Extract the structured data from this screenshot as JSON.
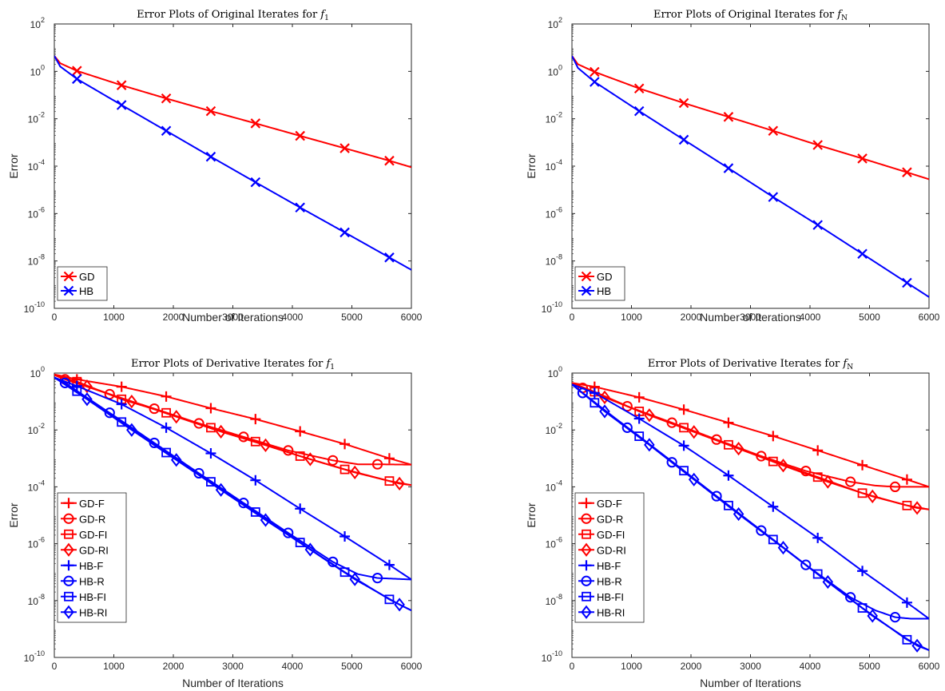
{
  "chart_data": [
    {
      "type": "line",
      "title": "Error Plots of Original Iterates for ",
      "title_math": "f",
      "title_sub": "1",
      "xlabel": "Number of Iterations",
      "ylabel": "Error",
      "xlim": [
        0,
        6000
      ],
      "ylim_log10": [
        -10,
        2
      ],
      "yscale": "log",
      "x_ticks": [
        "0",
        "1000",
        "2000",
        "3000",
        "4000",
        "5000",
        "6000"
      ],
      "y_ticks": [
        "10",
        "10",
        "10",
        "10",
        "10",
        "10",
        "10"
      ],
      "y_tick_exponents": [
        "-10",
        "-8",
        "-6",
        "-4",
        "-2",
        "0",
        "2"
      ],
      "legend_position": "bottom-left",
      "series": [
        {
          "name": "GD",
          "color": "#ff0000",
          "marker": "x",
          "x": [
            0,
            100,
            380,
            1130,
            1880,
            2630,
            3380,
            4130,
            4880,
            5630,
            6000
          ],
          "y": [
            4.5,
            2.2,
            1.05,
            0.26,
            0.072,
            0.021,
            0.0064,
            0.0019,
            0.00057,
            0.00017,
            9e-05
          ],
          "markers_at": [
            380,
            1130,
            1880,
            2630,
            3380,
            4130,
            4880,
            5630
          ]
        },
        {
          "name": "HB",
          "color": "#0000ff",
          "marker": "x",
          "x": [
            0,
            100,
            380,
            1130,
            1880,
            2630,
            3380,
            4130,
            4880,
            5630,
            6000
          ],
          "y": [
            4.5,
            1.6,
            0.48,
            0.038,
            0.0031,
            0.00025,
            2.1e-05,
            1.8e-06,
            1.6e-07,
            1.4e-08,
            4.2e-09
          ],
          "markers_at": [
            380,
            1130,
            1880,
            2630,
            3380,
            4130,
            4880,
            5630
          ]
        }
      ]
    },
    {
      "type": "line",
      "title": "Error Plots of Original Iterates for ",
      "title_math": "f",
      "title_sub": "N",
      "xlabel": "Number of Iterations",
      "ylabel": "Error",
      "xlim": [
        0,
        6000
      ],
      "ylim_log10": [
        -10,
        2
      ],
      "yscale": "log",
      "x_ticks": [
        "0",
        "1000",
        "2000",
        "3000",
        "4000",
        "5000",
        "6000"
      ],
      "y_ticks": [
        "10",
        "10",
        "10",
        "10",
        "10",
        "10",
        "10"
      ],
      "y_tick_exponents": [
        "-10",
        "-8",
        "-6",
        "-4",
        "-2",
        "0",
        "2"
      ],
      "legend_position": "bottom-left",
      "series": [
        {
          "name": "GD",
          "color": "#ff0000",
          "marker": "x",
          "x": [
            0,
            100,
            380,
            1130,
            1880,
            2630,
            3380,
            4130,
            4880,
            5630,
            6000
          ],
          "y": [
            4.5,
            2.0,
            0.95,
            0.19,
            0.046,
            0.012,
            0.0031,
            0.00078,
            0.00021,
            5.5e-05,
            2.8e-05
          ],
          "markers_at": [
            380,
            1130,
            1880,
            2630,
            3380,
            4130,
            4880,
            5630
          ]
        },
        {
          "name": "HB",
          "color": "#0000ff",
          "marker": "x",
          "x": [
            0,
            100,
            380,
            1130,
            1880,
            2630,
            3380,
            4130,
            4880,
            5630,
            6000
          ],
          "y": [
            4.5,
            1.4,
            0.36,
            0.021,
            0.0013,
            8.2e-05,
            5e-06,
            3.3e-07,
            2e-08,
            1.2e-09,
            3e-10
          ],
          "markers_at": [
            380,
            1130,
            1880,
            2630,
            3380,
            4130,
            4880,
            5630
          ]
        }
      ]
    },
    {
      "type": "line",
      "title": "Error Plots of Derivative Iterates for ",
      "title_math": "f",
      "title_sub": "1",
      "xlabel": "Number of Iterations",
      "ylabel": "Error",
      "xlim": [
        0,
        6000
      ],
      "ylim_log10": [
        -10,
        0
      ],
      "yscale": "log",
      "x_ticks": [
        "0",
        "1000",
        "2000",
        "3000",
        "4000",
        "5000",
        "6000"
      ],
      "y_ticks": [
        "10",
        "10",
        "10",
        "10",
        "10",
        "10"
      ],
      "y_tick_exponents": [
        "-10",
        "-8",
        "-6",
        "-4",
        "-2",
        "0"
      ],
      "legend_position": "bottom-left",
      "series": [
        {
          "name": "GD-F",
          "color": "#ff0000",
          "marker": "plus",
          "x": [
            0,
            380,
            1130,
            1880,
            2630,
            3380,
            4130,
            4880,
            5630,
            6000
          ],
          "y": [
            0.9,
            0.6,
            0.33,
            0.15,
            0.058,
            0.024,
            0.0089,
            0.0032,
            0.001,
            0.0006
          ],
          "markers_at": [
            380,
            1130,
            1880,
            2630,
            3380,
            4130,
            4880,
            5630
          ]
        },
        {
          "name": "GD-R",
          "color": "#ff0000",
          "marker": "circle",
          "x": [
            0,
            180,
            930,
            1680,
            2430,
            3180,
            3930,
            4680,
            5100,
            5430,
            6000
          ],
          "y": [
            0.85,
            0.6,
            0.18,
            0.056,
            0.017,
            0.0057,
            0.0019,
            0.00085,
            0.00062,
            0.00062,
            0.0006
          ],
          "markers_at": [
            180,
            930,
            1680,
            2430,
            3180,
            3930,
            4680,
            5430
          ]
        },
        {
          "name": "GD-FI",
          "color": "#ff0000",
          "marker": "square",
          "x": [
            0,
            380,
            1130,
            1880,
            2630,
            3380,
            4130,
            4880,
            5630,
            6000
          ],
          "y": [
            0.85,
            0.5,
            0.12,
            0.04,
            0.012,
            0.0039,
            0.0012,
            0.00041,
            0.00016,
            0.000115
          ],
          "markers_at": [
            380,
            1130,
            1880,
            2630,
            3380,
            4130,
            4880,
            5630
          ]
        },
        {
          "name": "GD-RI",
          "color": "#ff0000",
          "marker": "diamond",
          "x": [
            0,
            550,
            1300,
            2050,
            2800,
            3550,
            4300,
            5050,
            5800,
            6000
          ],
          "y": [
            0.85,
            0.34,
            0.1,
            0.029,
            0.0087,
            0.0029,
            0.00093,
            0.00032,
            0.00013,
            0.000115
          ],
          "markers_at": [
            550,
            1300,
            2050,
            2800,
            3550,
            4300,
            5050,
            5800
          ]
        },
        {
          "name": "HB-F",
          "color": "#0000ff",
          "marker": "plus",
          "x": [
            0,
            380,
            1130,
            1880,
            2630,
            3380,
            4130,
            4880,
            5630,
            6000
          ],
          "y": [
            0.7,
            0.35,
            0.08,
            0.012,
            0.0015,
            0.00017,
            1.7e-05,
            1.8e-06,
            1.8e-07,
            5.5e-08
          ],
          "markers_at": [
            380,
            1130,
            1880,
            2630,
            3380,
            4130,
            4880,
            5630
          ]
        },
        {
          "name": "HB-R",
          "color": "#0000ff",
          "marker": "circle",
          "x": [
            0,
            180,
            930,
            1680,
            2430,
            3180,
            3930,
            4680,
            5100,
            5430,
            6000
          ],
          "y": [
            0.7,
            0.45,
            0.04,
            0.0035,
            0.0003,
            2.7e-05,
            2.4e-06,
            2.3e-07,
            8.5e-08,
            6.2e-08,
            5.5e-08
          ],
          "markers_at": [
            180,
            930,
            1680,
            2430,
            3180,
            3930,
            4680,
            5430
          ]
        },
        {
          "name": "HB-FI",
          "color": "#0000ff",
          "marker": "square",
          "x": [
            0,
            380,
            1130,
            1880,
            2630,
            3380,
            4130,
            4880,
            5630,
            6000
          ],
          "y": [
            0.7,
            0.23,
            0.019,
            0.0016,
            0.00015,
            1.3e-05,
            1.1e-06,
            1e-07,
            1.1e-08,
            4.5e-09
          ],
          "markers_at": [
            380,
            1130,
            1880,
            2630,
            3380,
            4130,
            4880,
            5630
          ]
        },
        {
          "name": "HB-RI",
          "color": "#0000ff",
          "marker": "diamond",
          "x": [
            0,
            550,
            1300,
            2050,
            2800,
            3550,
            4300,
            5050,
            5800,
            6000
          ],
          "y": [
            0.7,
            0.12,
            0.01,
            0.00088,
            7.8e-05,
            6.8e-06,
            6.2e-07,
            5.6e-08,
            7.2e-09,
            4.5e-09
          ],
          "markers_at": [
            550,
            1300,
            2050,
            2800,
            3550,
            4300,
            5050,
            5800
          ]
        }
      ]
    },
    {
      "type": "line",
      "title": "Error Plots of Derivative Iterates for ",
      "title_math": "f",
      "title_sub": "N",
      "xlabel": "Number of Iterations",
      "ylabel": "Error",
      "xlim": [
        0,
        6000
      ],
      "ylim_log10": [
        -10,
        0
      ],
      "yscale": "log",
      "x_ticks": [
        "0",
        "1000",
        "2000",
        "3000",
        "4000",
        "5000",
        "6000"
      ],
      "y_ticks": [
        "10",
        "10",
        "10",
        "10",
        "10",
        "10"
      ],
      "y_tick_exponents": [
        "-10",
        "-8",
        "-6",
        "-4",
        "-2",
        "0"
      ],
      "legend_position": "bottom-left",
      "series": [
        {
          "name": "GD-F",
          "color": "#ff0000",
          "marker": "plus",
          "x": [
            0,
            380,
            1130,
            1880,
            2630,
            3380,
            4130,
            4880,
            5630,
            6000
          ],
          "y": [
            0.45,
            0.33,
            0.14,
            0.052,
            0.018,
            0.0061,
            0.0019,
            0.00058,
            0.00018,
            0.0001
          ],
          "markers_at": [
            380,
            1130,
            1880,
            2630,
            3380,
            4130,
            4880,
            5630
          ]
        },
        {
          "name": "GD-R",
          "color": "#ff0000",
          "marker": "circle",
          "x": [
            0,
            180,
            930,
            1680,
            2430,
            3180,
            3930,
            4680,
            5100,
            5430,
            6000
          ],
          "y": [
            0.45,
            0.3,
            0.068,
            0.018,
            0.0046,
            0.0012,
            0.00036,
            0.00015,
            0.00011,
            0.0001,
            0.0001
          ],
          "markers_at": [
            180,
            930,
            1680,
            2430,
            3180,
            3930,
            4680,
            5430
          ]
        },
        {
          "name": "GD-FI",
          "color": "#ff0000",
          "marker": "square",
          "x": [
            0,
            380,
            1130,
            1880,
            2630,
            3380,
            4130,
            4880,
            5630,
            6000
          ],
          "y": [
            0.45,
            0.22,
            0.045,
            0.012,
            0.003,
            0.00078,
            0.00022,
            6e-05,
            2.2e-05,
            1.6e-05
          ],
          "markers_at": [
            380,
            1130,
            1880,
            2630,
            3380,
            4130,
            4880,
            5630
          ]
        },
        {
          "name": "GD-RI",
          "color": "#ff0000",
          "marker": "diamond",
          "x": [
            0,
            550,
            1300,
            2050,
            2800,
            3550,
            4300,
            5050,
            5800,
            6000
          ],
          "y": [
            0.45,
            0.14,
            0.033,
            0.0085,
            0.0022,
            0.00056,
            0.00015,
            4.6e-05,
            1.8e-05,
            1.6e-05
          ],
          "markers_at": [
            550,
            1300,
            2050,
            2800,
            3550,
            4300,
            5050,
            5800
          ]
        },
        {
          "name": "HB-F",
          "color": "#0000ff",
          "marker": "plus",
          "x": [
            0,
            380,
            1130,
            1880,
            2630,
            3380,
            4130,
            4880,
            5630,
            6000
          ],
          "y": [
            0.4,
            0.2,
            0.025,
            0.0028,
            0.00025,
            2e-05,
            1.6e-06,
            1.1e-07,
            8.5e-09,
            2.3e-09
          ],
          "markers_at": [
            380,
            1130,
            1880,
            2630,
            3380,
            4130,
            4880,
            5630
          ]
        },
        {
          "name": "HB-R",
          "color": "#0000ff",
          "marker": "circle",
          "x": [
            0,
            180,
            930,
            1680,
            2430,
            3180,
            3930,
            4680,
            5100,
            5430,
            5700,
            6000
          ],
          "y": [
            0.4,
            0.2,
            0.012,
            0.00073,
            4.7e-05,
            2.9e-06,
            1.8e-07,
            1.3e-08,
            4.5e-09,
            2.6e-09,
            2.3e-09,
            2.3e-09
          ],
          "markers_at": [
            180,
            930,
            1680,
            2430,
            3180,
            3930,
            4680,
            5430
          ]
        },
        {
          "name": "HB-FI",
          "color": "#0000ff",
          "marker": "square",
          "x": [
            0,
            380,
            1130,
            1880,
            2630,
            3380,
            4130,
            4880,
            5630,
            6000
          ],
          "y": [
            0.4,
            0.09,
            0.006,
            0.00037,
            2.2e-05,
            1.4e-06,
            8.6e-08,
            5.5e-09,
            4.2e-10,
            1.8e-10
          ],
          "markers_at": [
            380,
            1130,
            1880,
            2630,
            3380,
            4130,
            4880,
            5630
          ]
        },
        {
          "name": "HB-RI",
          "color": "#0000ff",
          "marker": "diamond",
          "x": [
            0,
            550,
            1300,
            2050,
            2800,
            3550,
            4300,
            5050,
            5800,
            6000
          ],
          "y": [
            0.4,
            0.045,
            0.003,
            0.00018,
            1.1e-05,
            7.2e-07,
            4.5e-08,
            2.9e-09,
            2.6e-10,
            1.8e-10
          ],
          "markers_at": [
            550,
            1300,
            2050,
            2800,
            3550,
            4300,
            5050,
            5800
          ]
        }
      ]
    }
  ]
}
